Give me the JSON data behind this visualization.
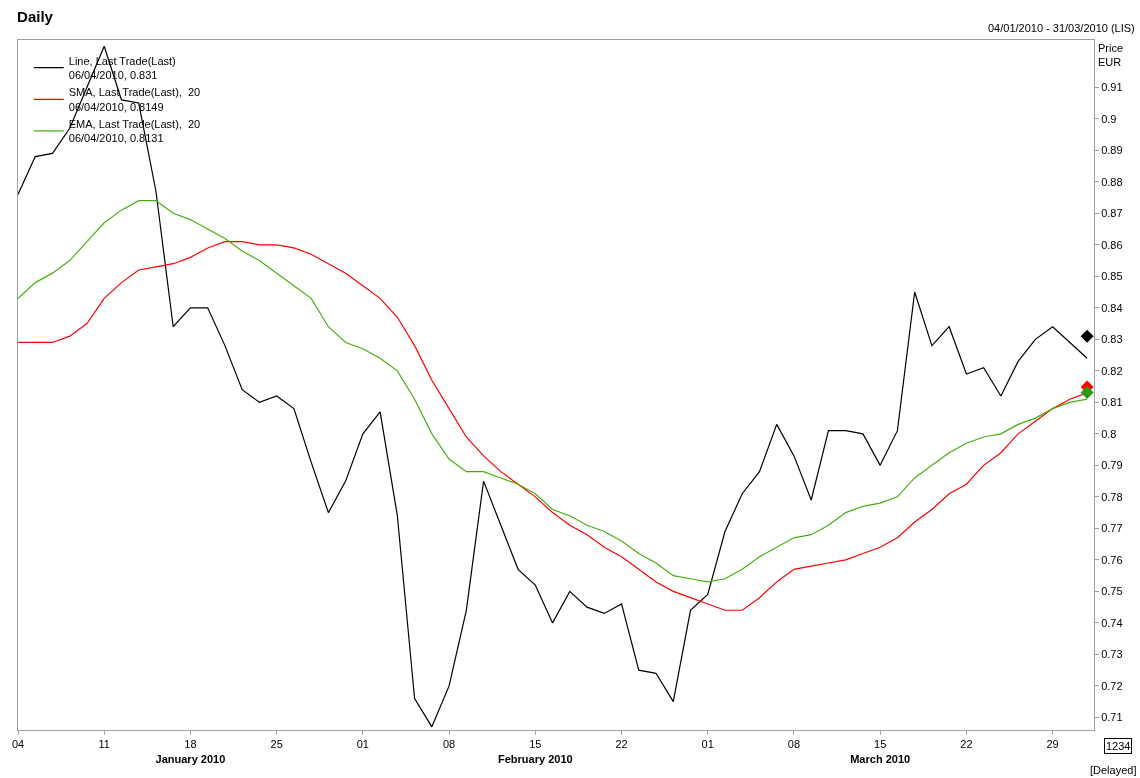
{
  "chart_data": {
    "type": "line",
    "title": "Daily",
    "subtitle": "04/01/2010 - 31/03/2010 (LIS)",
    "ylabel": "Price\nEUR",
    "categories": [
      "04",
      null,
      null,
      null,
      null,
      "11",
      null,
      null,
      null,
      null,
      "18\nJanuary 2010",
      null,
      null,
      null,
      null,
      "25",
      null,
      null,
      null,
      null,
      "01",
      null,
      null,
      null,
      null,
      "08",
      null,
      null,
      null,
      null,
      "15\nFebruary 2010",
      null,
      null,
      null,
      null,
      "22",
      null,
      null,
      null,
      null,
      "01",
      null,
      null,
      null,
      null,
      "08",
      null,
      null,
      null,
      null,
      "15\nMarch 2010",
      null,
      null,
      null,
      null,
      "22",
      null,
      null,
      null,
      null,
      "29",
      null,
      null
    ],
    "series": [
      {
        "name": "Line, Last Trade(Last)\n06/04/2010, 0.831",
        "color": "#000000",
        "values": [
          0.876,
          0.888,
          0.889,
          0.897,
          0.91,
          0.923,
          0.906,
          0.905,
          0.877,
          0.834,
          0.84,
          0.84,
          0.828,
          0.814,
          0.81,
          0.812,
          0.808,
          0.791,
          0.775,
          0.785,
          0.8,
          0.807,
          0.774,
          0.716,
          0.707,
          0.72,
          0.744,
          0.785,
          0.771,
          0.757,
          0.752,
          0.74,
          0.75,
          0.745,
          0.743,
          0.746,
          0.725,
          0.724,
          0.715,
          0.744,
          0.749,
          0.769,
          0.781,
          0.788,
          0.803,
          0.793,
          0.779,
          0.801,
          0.801,
          0.8,
          0.79,
          0.801,
          0.845,
          0.828,
          0.834,
          0.819,
          0.821,
          0.812,
          0.823,
          0.83,
          0.834,
          0.829,
          0.824
        ]
      },
      {
        "name": "SMA, Last Trade(Last),  20\n06/04/2010, 0.8149",
        "color": "#ff0000",
        "values": [
          0.829,
          0.829,
          0.829,
          0.831,
          0.835,
          0.843,
          0.848,
          0.852,
          0.853,
          0.854,
          0.856,
          0.859,
          0.861,
          0.861,
          0.86,
          0.86,
          0.859,
          0.857,
          0.854,
          0.851,
          0.847,
          0.843,
          0.837,
          0.828,
          0.817,
          0.808,
          0.799,
          0.793,
          0.788,
          0.784,
          0.78,
          0.775,
          0.771,
          0.768,
          0.764,
          0.761,
          0.757,
          0.753,
          0.75,
          0.748,
          0.746,
          0.744,
          0.744,
          0.748,
          0.753,
          0.757,
          0.758,
          0.759,
          0.76,
          0.762,
          0.764,
          0.767,
          0.772,
          0.776,
          0.781,
          0.784,
          0.79,
          0.794,
          0.8,
          0.804,
          0.808,
          0.811,
          0.813
        ]
      },
      {
        "name": "EMA, Last Trade(Last),  20\n06/04/2010, 0.8131",
        "color": "#44b010",
        "values": [
          0.843,
          0.848,
          0.851,
          0.855,
          0.861,
          0.867,
          0.871,
          0.874,
          0.874,
          0.87,
          0.868,
          0.865,
          0.862,
          0.858,
          0.855,
          0.851,
          0.847,
          0.843,
          0.834,
          0.829,
          0.827,
          0.824,
          0.82,
          0.811,
          0.8,
          0.792,
          0.788,
          0.788,
          0.786,
          0.784,
          0.781,
          0.776,
          0.774,
          0.771,
          0.769,
          0.766,
          0.762,
          0.759,
          0.755,
          0.754,
          0.753,
          0.754,
          0.757,
          0.761,
          0.764,
          0.767,
          0.768,
          0.771,
          0.775,
          0.777,
          0.778,
          0.78,
          0.786,
          0.79,
          0.794,
          0.797,
          0.799,
          0.8,
          0.803,
          0.805,
          0.808,
          0.81,
          0.811
        ]
      },
      {
        "type": "scatter",
        "marker": "diamond",
        "color": "#000000",
        "values": [
          null,
          null,
          null,
          null,
          null,
          null,
          null,
          null,
          null,
          null,
          null,
          null,
          null,
          null,
          null,
          null,
          null,
          null,
          null,
          null,
          null,
          null,
          null,
          null,
          null,
          null,
          null,
          null,
          null,
          null,
          null,
          null,
          null,
          null,
          null,
          null,
          null,
          null,
          null,
          null,
          null,
          null,
          null,
          null,
          null,
          null,
          null,
          null,
          null,
          null,
          null,
          null,
          null,
          null,
          null,
          null,
          null,
          null,
          null,
          null,
          null,
          null,
          0.831
        ]
      },
      {
        "type": "scatter",
        "marker": "diamond",
        "color": "#ff0000",
        "values": [
          null,
          null,
          null,
          null,
          null,
          null,
          null,
          null,
          null,
          null,
          null,
          null,
          null,
          null,
          null,
          null,
          null,
          null,
          null,
          null,
          null,
          null,
          null,
          null,
          null,
          null,
          null,
          null,
          null,
          null,
          null,
          null,
          null,
          null,
          null,
          null,
          null,
          null,
          null,
          null,
          null,
          null,
          null,
          null,
          null,
          null,
          null,
          null,
          null,
          null,
          null,
          null,
          null,
          null,
          null,
          null,
          null,
          null,
          null,
          null,
          null,
          null,
          0.8149
        ]
      },
      {
        "type": "scatter",
        "marker": "diamond",
        "color": "#2a9a10",
        "values": [
          null,
          null,
          null,
          null,
          null,
          null,
          null,
          null,
          null,
          null,
          null,
          null,
          null,
          null,
          null,
          null,
          null,
          null,
          null,
          null,
          null,
          null,
          null,
          null,
          null,
          null,
          null,
          null,
          null,
          null,
          null,
          null,
          null,
          null,
          null,
          null,
          null,
          null,
          null,
          null,
          null,
          null,
          null,
          null,
          null,
          null,
          null,
          null,
          null,
          null,
          null,
          null,
          null,
          null,
          null,
          null,
          null,
          null,
          null,
          null,
          null,
          null,
          0.8131
        ]
      }
    ],
    "ylim": [
      0.706,
      0.925
    ],
    "yticks": [
      0.71,
      0.72,
      0.73,
      0.74,
      0.75,
      0.76,
      0.77,
      0.78,
      0.79,
      0.8,
      0.81,
      0.82,
      0.83,
      0.84,
      0.85,
      0.86,
      0.87,
      0.88,
      0.89,
      0.9,
      0.91
    ],
    "annotations": [
      "1234",
      "[Delayed]"
    ],
    "legend": "top left",
    "marker": "none",
    "line_style": "solid"
  }
}
